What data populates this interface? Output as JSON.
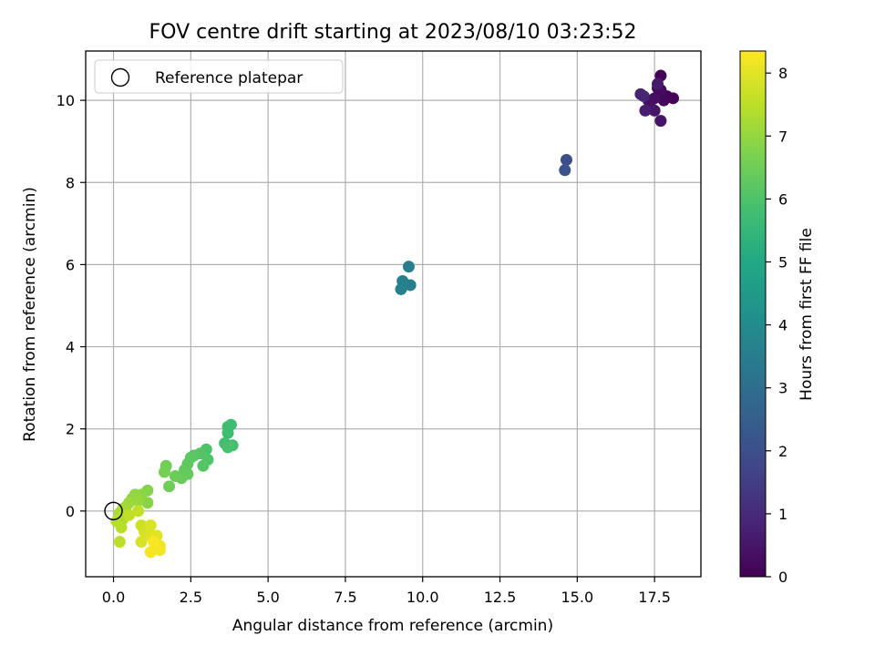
{
  "chart_data": {
    "type": "scatter",
    "title": "FOV centre drift starting at 2023/08/10 03:23:52",
    "xlabel": "Angular distance from reference (arcmin)",
    "ylabel": "Rotation from reference (arcmin)",
    "xlim": [
      -0.9,
      19.0
    ],
    "ylim": [
      -1.6,
      11.2
    ],
    "x_ticks": [
      0.0,
      2.5,
      5.0,
      7.5,
      10.0,
      12.5,
      15.0,
      17.5
    ],
    "x_tick_labels": [
      "0.0",
      "2.5",
      "5.0",
      "7.5",
      "10.0",
      "12.5",
      "15.0",
      "17.5"
    ],
    "y_ticks": [
      0,
      2,
      4,
      6,
      8,
      10
    ],
    "y_tick_labels": [
      "0",
      "2",
      "4",
      "6",
      "8",
      "10"
    ],
    "grid": true,
    "colormap": "viridis",
    "colorbar": {
      "label": "Hours from first FF file",
      "range": [
        0,
        8.35
      ],
      "ticks": [
        0,
        1,
        2,
        3,
        4,
        5,
        6,
        7,
        8
      ],
      "tick_labels": [
        "0",
        "1",
        "2",
        "3",
        "4",
        "5",
        "6",
        "7",
        "8"
      ]
    },
    "legend": {
      "placement": "upper-left",
      "entries": [
        {
          "label": "Reference platepar",
          "marker": "open-circle"
        }
      ]
    },
    "reference_point": {
      "x": 0.0,
      "y": 0.0
    },
    "points": [
      {
        "x": 17.7,
        "y": 10.6,
        "t": 0.05
      },
      {
        "x": 17.9,
        "y": 10.1,
        "t": 0.08
      },
      {
        "x": 18.1,
        "y": 10.05,
        "t": 0.1
      },
      {
        "x": 17.8,
        "y": 10.0,
        "t": 0.15
      },
      {
        "x": 17.6,
        "y": 10.3,
        "t": 0.2
      },
      {
        "x": 17.7,
        "y": 10.25,
        "t": 0.22
      },
      {
        "x": 17.5,
        "y": 10.05,
        "t": 0.3
      },
      {
        "x": 17.3,
        "y": 10.0,
        "t": 0.35
      },
      {
        "x": 17.4,
        "y": 9.8,
        "t": 0.4
      },
      {
        "x": 17.7,
        "y": 9.5,
        "t": 0.45
      },
      {
        "x": 17.5,
        "y": 9.75,
        "t": 0.5
      },
      {
        "x": 17.6,
        "y": 10.4,
        "t": 0.6
      },
      {
        "x": 17.2,
        "y": 9.75,
        "t": 0.7
      },
      {
        "x": 17.05,
        "y": 10.15,
        "t": 0.8
      },
      {
        "x": 17.15,
        "y": 10.1,
        "t": 0.9
      },
      {
        "x": 14.65,
        "y": 8.55,
        "t": 2.0
      },
      {
        "x": 14.6,
        "y": 8.3,
        "t": 2.1
      },
      {
        "x": 9.55,
        "y": 5.95,
        "t": 3.5
      },
      {
        "x": 9.6,
        "y": 5.5,
        "t": 3.55
      },
      {
        "x": 9.35,
        "y": 5.6,
        "t": 3.6
      },
      {
        "x": 9.3,
        "y": 5.4,
        "t": 3.65
      },
      {
        "x": 3.7,
        "y": 2.05,
        "t": 5.7
      },
      {
        "x": 3.8,
        "y": 2.1,
        "t": 5.72
      },
      {
        "x": 3.7,
        "y": 1.9,
        "t": 5.75
      },
      {
        "x": 3.6,
        "y": 1.65,
        "t": 5.8
      },
      {
        "x": 3.85,
        "y": 1.6,
        "t": 5.85
      },
      {
        "x": 3.7,
        "y": 1.55,
        "t": 5.9
      },
      {
        "x": 3.0,
        "y": 1.5,
        "t": 6.0
      },
      {
        "x": 3.05,
        "y": 1.25,
        "t": 6.05
      },
      {
        "x": 2.8,
        "y": 1.4,
        "t": 6.1
      },
      {
        "x": 2.9,
        "y": 1.1,
        "t": 6.12
      },
      {
        "x": 2.6,
        "y": 1.35,
        "t": 6.15
      },
      {
        "x": 2.5,
        "y": 1.3,
        "t": 6.2
      },
      {
        "x": 2.4,
        "y": 1.15,
        "t": 6.25
      },
      {
        "x": 2.3,
        "y": 1.0,
        "t": 6.3
      },
      {
        "x": 2.4,
        "y": 0.9,
        "t": 6.35
      },
      {
        "x": 2.2,
        "y": 0.8,
        "t": 6.4
      },
      {
        "x": 2.0,
        "y": 0.85,
        "t": 6.45
      },
      {
        "x": 1.8,
        "y": 0.6,
        "t": 6.5
      },
      {
        "x": 1.7,
        "y": 1.1,
        "t": 6.55
      },
      {
        "x": 1.65,
        "y": 0.95,
        "t": 6.6
      },
      {
        "x": 1.1,
        "y": 0.5,
        "t": 6.8
      },
      {
        "x": 1.1,
        "y": 0.2,
        "t": 6.85
      },
      {
        "x": 0.9,
        "y": 0.4,
        "t": 6.9
      },
      {
        "x": 0.7,
        "y": 0.4,
        "t": 6.95
      },
      {
        "x": 0.6,
        "y": 0.3,
        "t": 7.0
      },
      {
        "x": 0.8,
        "y": 0.25,
        "t": 7.05
      },
      {
        "x": 0.5,
        "y": 0.2,
        "t": 7.1
      },
      {
        "x": 0.4,
        "y": 0.1,
        "t": 7.15
      },
      {
        "x": 0.3,
        "y": 0.05,
        "t": 7.2
      },
      {
        "x": 0.2,
        "y": -0.05,
        "t": 7.3
      },
      {
        "x": 0.3,
        "y": -0.2,
        "t": 7.35
      },
      {
        "x": 0.1,
        "y": -0.25,
        "t": 7.4
      },
      {
        "x": 0.25,
        "y": -0.4,
        "t": 7.45
      },
      {
        "x": 0.2,
        "y": -0.75,
        "t": 7.5
      },
      {
        "x": 0.5,
        "y": -0.1,
        "t": 7.55
      },
      {
        "x": 0.8,
        "y": 0.0,
        "t": 7.6
      },
      {
        "x": 0.9,
        "y": -0.35,
        "t": 7.7
      },
      {
        "x": 1.0,
        "y": -0.5,
        "t": 7.8
      },
      {
        "x": 0.9,
        "y": -0.75,
        "t": 7.85
      },
      {
        "x": 1.2,
        "y": -0.35,
        "t": 7.9
      },
      {
        "x": 1.2,
        "y": -0.6,
        "t": 7.95
      },
      {
        "x": 1.4,
        "y": -0.6,
        "t": 8.0
      },
      {
        "x": 1.4,
        "y": -0.8,
        "t": 8.1
      },
      {
        "x": 1.5,
        "y": -0.85,
        "t": 8.15
      },
      {
        "x": 1.5,
        "y": -0.95,
        "t": 8.2
      },
      {
        "x": 1.2,
        "y": -1.0,
        "t": 8.25
      },
      {
        "x": 1.3,
        "y": -0.75,
        "t": 8.3
      }
    ]
  }
}
